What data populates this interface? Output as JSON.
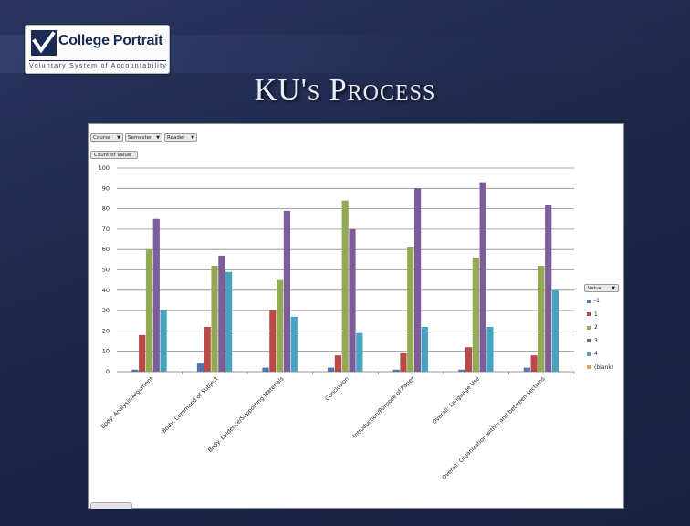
{
  "logo": {
    "name": "College Portrait",
    "tagline": "Voluntary System of Accountability"
  },
  "slide": {
    "title": "KU's Process"
  },
  "filters": [
    {
      "label": "Course"
    },
    {
      "label": "Semester"
    },
    {
      "label": "Reader"
    }
  ],
  "count_button": {
    "label": "Count of Value"
  },
  "legend": {
    "header": "Value",
    "items": [
      {
        "label": "-1",
        "color": "#4a7ab0"
      },
      {
        "label": "1",
        "color": "#b94a48"
      },
      {
        "label": "2",
        "color": "#93a955"
      },
      {
        "label": "3",
        "color": "#7d5c9a"
      },
      {
        "label": "4",
        "color": "#46a4c0"
      },
      {
        "label": "(blank)",
        "color": "#e59d48"
      }
    ]
  },
  "chart_data": {
    "type": "bar",
    "categories": [
      "Body: Analysis/Argument",
      "Body: Command of Subject",
      "Body: Evidence/Supporting Materials",
      "Conclusion",
      "Introduction/Purpose of Paper",
      "Overall: Language Use",
      "Overall: Organization within and between sections"
    ],
    "series": [
      {
        "name": "-1",
        "values": [
          1,
          4,
          2,
          2,
          1,
          1,
          2
        ]
      },
      {
        "name": "1",
        "values": [
          18,
          22,
          30,
          8,
          9,
          12,
          8
        ]
      },
      {
        "name": "2",
        "values": [
          60,
          52,
          45,
          84,
          61,
          56,
          52
        ]
      },
      {
        "name": "3",
        "values": [
          75,
          57,
          79,
          70,
          90,
          93,
          82
        ]
      },
      {
        "name": "4",
        "values": [
          30,
          49,
          27,
          19,
          22,
          22,
          40
        ]
      }
    ],
    "ylim": [
      0,
      100
    ],
    "yticks": [
      0,
      10,
      20,
      30,
      40,
      50,
      60,
      70,
      80,
      90,
      100
    ],
    "grid": true,
    "legend_position": "right"
  }
}
